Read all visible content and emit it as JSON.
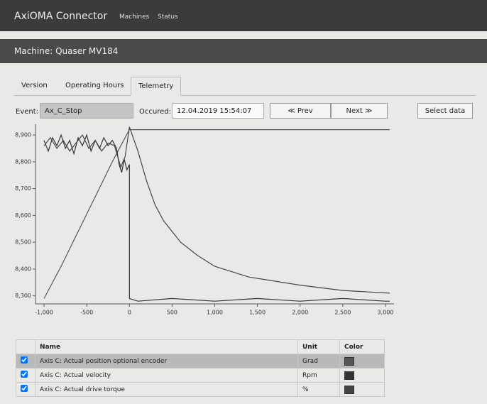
{
  "navbar": {
    "brand": "AxiOMA Connector",
    "links": [
      "Machines",
      "Status"
    ]
  },
  "header": {
    "title": "Machine: Quaser MV184"
  },
  "tabs": [
    "Version",
    "Operating Hours",
    "Telemetry"
  ],
  "filter": {
    "event_label": "Event:",
    "event": "Ax_C_Stop",
    "occured_label": "Occured:",
    "occured": "12.04.2019 15:54:07",
    "prev": "≪ Prev",
    "next": "Next ≫",
    "select": "Select data"
  },
  "chart_data": {
    "type": "line",
    "xlim": [
      -1100,
      3100
    ],
    "ylim": [
      8.27,
      8.94
    ],
    "xticks": [
      {
        "value": -1000,
        "label": "-1,000"
      },
      -500,
      0,
      500,
      {
        "value": 1000,
        "label": "1,000"
      },
      {
        "value": 1500,
        "label": "1,500"
      },
      {
        "value": 2000,
        "label": "2,000"
      },
      {
        "value": 2500,
        "label": "2,500"
      },
      {
        "value": 3000,
        "label": "3,000"
      }
    ],
    "yticks": [
      {
        "value": 8.3,
        "label": "8,300"
      },
      {
        "value": 8.4,
        "label": "8,400"
      },
      {
        "value": 8.5,
        "label": "8,500"
      },
      {
        "value": 8.6,
        "label": "8,600"
      },
      {
        "value": 8.7,
        "label": "8,700"
      },
      {
        "value": 8.8,
        "label": "8,800"
      },
      {
        "value": 8.9,
        "label": "8,900"
      }
    ],
    "grid": false,
    "series": [
      {
        "color": "#555555",
        "x": [
          -1000,
          -800,
          -600,
          -400,
          -200,
          -100,
          0,
          500,
          1000,
          2000,
          3050
        ],
        "values": [
          8.29,
          8.41,
          8.54,
          8.67,
          8.8,
          8.86,
          8.92,
          8.92,
          8.92,
          8.92,
          8.92
        ]
      },
      {
        "color": "#333333",
        "x": [
          -1000,
          -950,
          -900,
          -850,
          -800,
          -750,
          -700,
          -650,
          -600,
          -550,
          -500,
          -450,
          -400,
          -350,
          -300,
          -250,
          -200,
          -150,
          -120,
          -90,
          -60,
          -30,
          0,
          0,
          100,
          500,
          1000,
          1500,
          2000,
          2500,
          3000,
          3050
        ],
        "values": [
          8.88,
          8.84,
          8.89,
          8.86,
          8.9,
          8.85,
          8.88,
          8.83,
          8.89,
          8.86,
          8.9,
          8.84,
          8.88,
          8.85,
          8.89,
          8.86,
          8.88,
          8.85,
          8.79,
          8.76,
          8.81,
          8.77,
          8.79,
          8.29,
          8.28,
          8.29,
          8.28,
          8.29,
          8.28,
          8.29,
          8.28,
          8.28
        ]
      },
      {
        "color": "#444444",
        "x": [
          -1000,
          -925,
          -850,
          -775,
          -700,
          -625,
          -550,
          -475,
          -400,
          -325,
          -250,
          -175,
          -100,
          -50,
          0,
          100,
          200,
          300,
          400,
          600,
          800,
          1000,
          1400,
          2000,
          2500,
          3050
        ],
        "values": [
          8.86,
          8.89,
          8.85,
          8.88,
          8.84,
          8.87,
          8.9,
          8.85,
          8.88,
          8.84,
          8.87,
          8.86,
          8.78,
          8.82,
          8.93,
          8.84,
          8.73,
          8.64,
          8.58,
          8.5,
          8.45,
          8.41,
          8.37,
          8.34,
          8.32,
          8.31
        ]
      }
    ]
  },
  "table": {
    "columns": [
      "Name",
      "Unit",
      "Color"
    ],
    "rows": [
      {
        "name": "Axis C: Actual position optional encoder",
        "unit": "Grad",
        "color": "#555555"
      },
      {
        "name": "Axis C: Actual velocity",
        "unit": "Rpm",
        "color": "#333333"
      },
      {
        "name": "Axis C: Actual drive torque",
        "unit": "%",
        "color": "#444444"
      }
    ]
  }
}
